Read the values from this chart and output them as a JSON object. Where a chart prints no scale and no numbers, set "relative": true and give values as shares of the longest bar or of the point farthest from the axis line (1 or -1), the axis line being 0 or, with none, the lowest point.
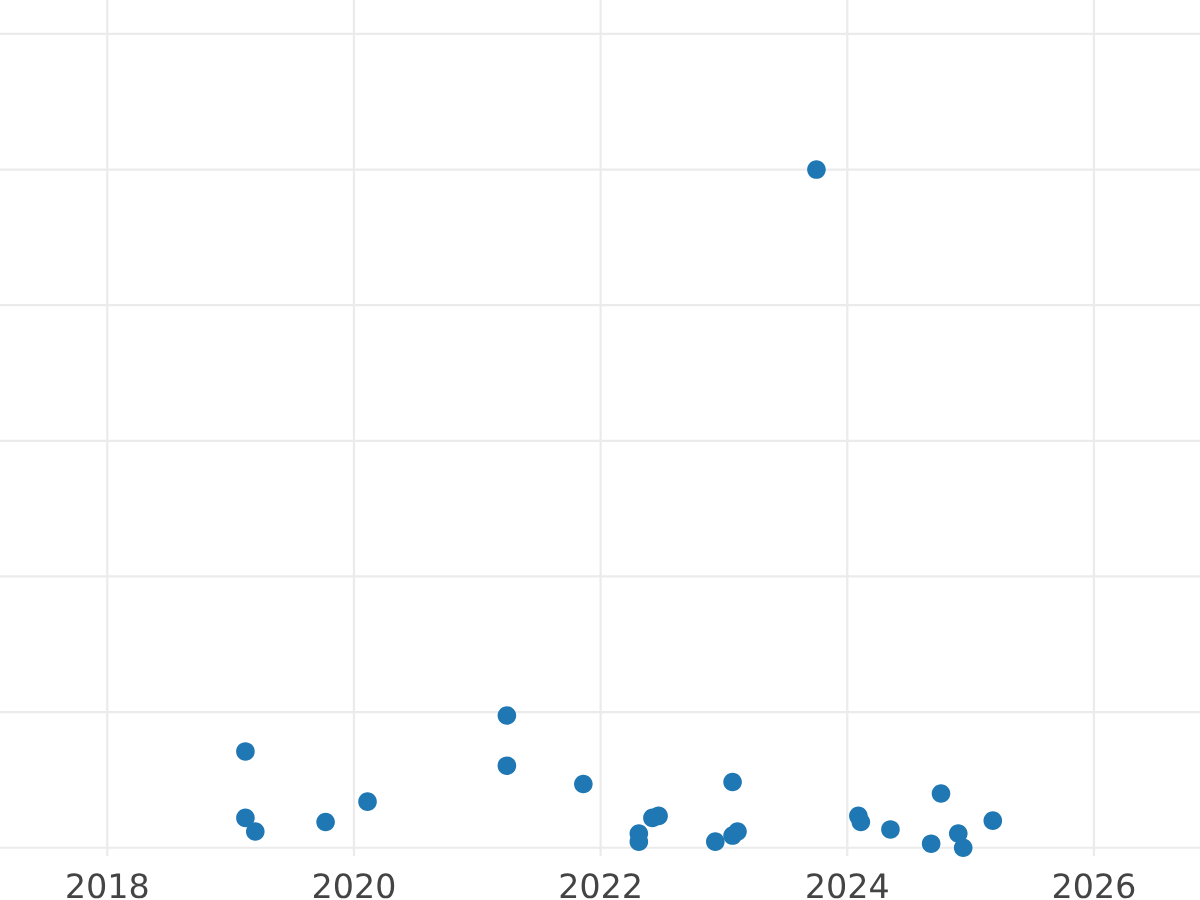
{
  "chart_data": {
    "type": "scatter",
    "relative": true,
    "color": "#1f77b4",
    "grid": true,
    "x": [
      2019.12,
      2019.12,
      2019.2,
      2019.77,
      2020.11,
      2021.24,
      2021.24,
      2021.86,
      2022.31,
      2022.31,
      2022.42,
      2022.47,
      2022.93,
      2023.07,
      2023.07,
      2023.11,
      2023.75,
      2024.09,
      2024.11,
      2024.35,
      2024.68,
      2024.76,
      2024.9,
      2024.94,
      2025.18
    ],
    "values": [
      0.142,
      0.044,
      0.024,
      0.038,
      0.068,
      0.195,
      0.121,
      0.094,
      0.021,
      0.009,
      0.044,
      0.047,
      0.009,
      0.097,
      0.018,
      0.024,
      1,
      0.047,
      0.038,
      0.027,
      0.006,
      0.08,
      0.021,
      0,
      0.04
    ],
    "xlim": [
      2017.13,
      2026.86
    ],
    "xticks": [
      2018,
      2020,
      2022,
      2024,
      2026
    ]
  }
}
